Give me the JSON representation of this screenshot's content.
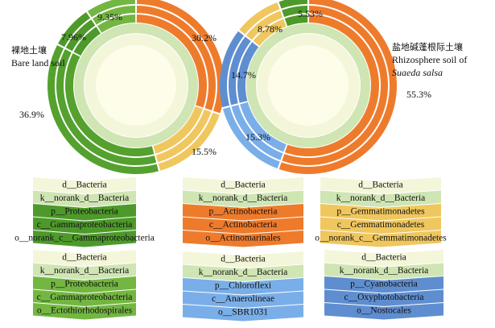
{
  "chart_data": [
    {
      "type": "donut",
      "label_cn": "裸地土壤",
      "label_en": "Bare land soil",
      "slices": [
        {
          "value": 30.2,
          "label": "30.2%",
          "color": "#ee7b2c"
        },
        {
          "value": 15.5,
          "label": "15.5%",
          "color": "#f0c75e"
        },
        {
          "value": 36.9,
          "label": "36.9%",
          "color": "#54a12e"
        },
        {
          "value": 7.96,
          "label": "7.96%",
          "color": "#4d9a2a"
        },
        {
          "value": 9.35,
          "label": "9.35%",
          "color": "#73b641"
        }
      ]
    },
    {
      "type": "donut",
      "label_cn": "盐地碱蓬根际土壤",
      "label_en": "Rhizosphere soil of",
      "label_en_italic": "Suaeda salsa",
      "slices": [
        {
          "value": 55.3,
          "label": "55.3%",
          "color": "#ee7b2c"
        },
        {
          "value": 15.3,
          "label": "15.3%",
          "color": "#7aaee8"
        },
        {
          "value": 14.7,
          "label": "14.7%",
          "color": "#5f8ed0"
        },
        {
          "value": 8.78,
          "label": "8.78%",
          "color": "#f0c75e"
        },
        {
          "value": 5.53,
          "label": "5.53%",
          "color": "#4d9a2a"
        }
      ]
    }
  ],
  "ring_colors": {
    "domain": "#f4f6da",
    "kingdom": "#cfe5b3"
  },
  "legend_blocks": [
    {
      "color": "#4d9a2a",
      "lines": [
        "d__Bacteria",
        "k__norank_d__Bacteria",
        "p__Proteobacteria",
        "c__Gammaproteobacteria",
        "o__norank_c__Gammaproteobacteria"
      ]
    },
    {
      "color": "#ee7b2c",
      "lines": [
        "d__Bacteria",
        "k__norank_d__Bacteria",
        "p__Actinobacteria",
        "c__Actinobacteria",
        "o__Actinomarinales"
      ]
    },
    {
      "color": "#f0c75e",
      "lines": [
        "d__Bacteria",
        "k__norank_d__Bacteria",
        "p__Gemmatimonadetes",
        "c__Gemmatimonadetes",
        "o__norank_c__Gemmatimonadetes"
      ]
    },
    {
      "color": "#73b641",
      "lines": [
        "d__Bacteria",
        "k__norank_d__Bacteria",
        "p__Proteobacteria",
        "c__Gammaproteobacteria",
        "o__Ectothiorhodospirales"
      ]
    },
    {
      "color": "#7aaee8",
      "lines": [
        "d__Bacteria",
        "k__norank_d__Bacteria",
        "p__Chloroflexi",
        "c__Anaerolineae",
        "o__SBR1031"
      ]
    },
    {
      "color": "#5f8ed0",
      "lines": [
        "d__Bacteria",
        "k__norank_d__Bacteria",
        "p__Cyanobacteria",
        "c__Oxyphotobacteria",
        "o__Nostocales"
      ]
    }
  ]
}
